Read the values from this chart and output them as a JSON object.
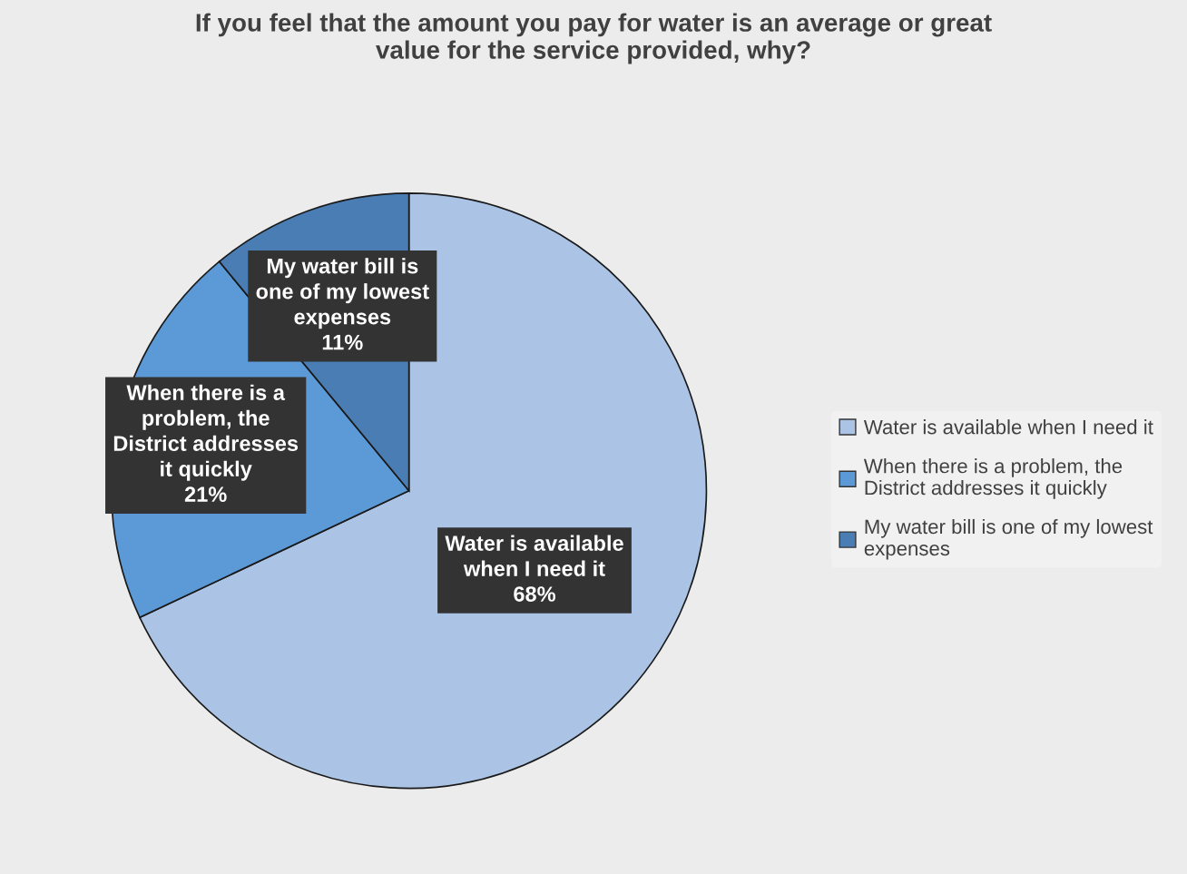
{
  "chart_data": {
    "type": "pie",
    "title": "If you feel that the amount you pay for water is an average or great value for the service provided, why?",
    "categories": [
      "Water is available when I need it",
      "When there is a problem, the District addresses it quickly",
      "My water bill is one of my lowest expenses"
    ],
    "values": [
      68,
      21,
      11
    ],
    "colors": [
      "#abc4e5",
      "#5b9ad6",
      "#4a7db3"
    ],
    "value_labels": [
      "68%",
      "21%",
      "11%"
    ],
    "legend": "right"
  }
}
